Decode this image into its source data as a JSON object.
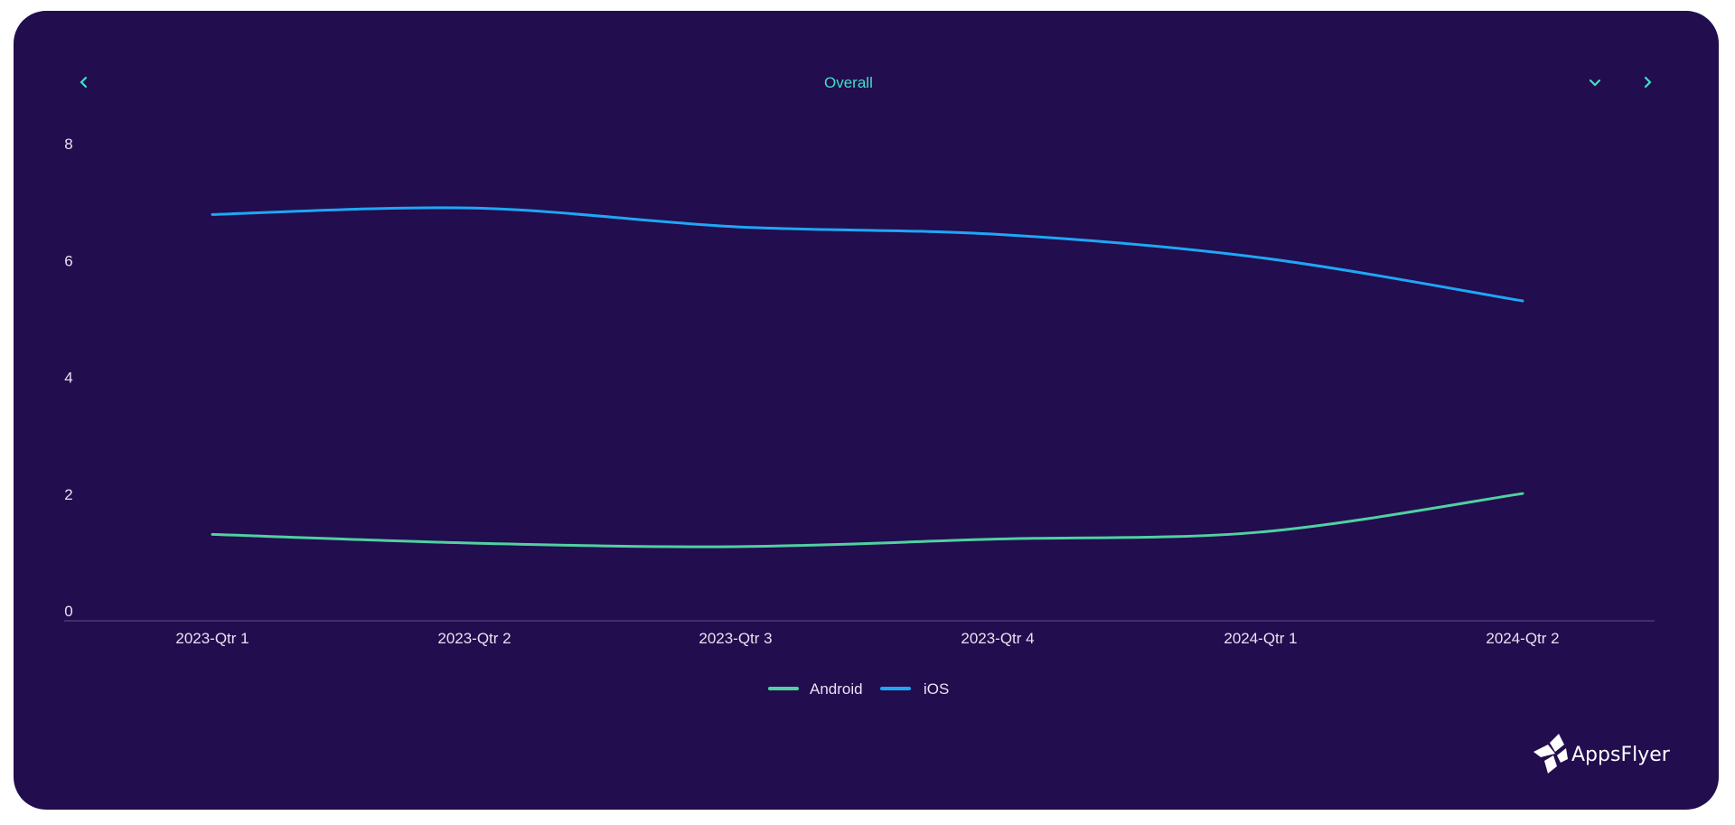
{
  "header": {
    "title": "Overall",
    "prev_icon": "chevron-left-icon",
    "dropdown_icon": "chevron-down-icon",
    "next_icon": "chevron-right-icon"
  },
  "colors": {
    "background": "#220d4e",
    "accent": "#3fe0c5",
    "android": "#4fd1a1",
    "ios": "#1ea7f5"
  },
  "chart_data": {
    "type": "line",
    "categories": [
      "2023-Qtr 1",
      "2023-Qtr 2",
      "2023-Qtr 3",
      "2023-Qtr 4",
      "2024-Qtr 1",
      "2024-Qtr 2"
    ],
    "series": [
      {
        "name": "Android",
        "values": [
          1.48,
          1.33,
          1.27,
          1.4,
          1.52,
          2.18
        ]
      },
      {
        "name": "iOS",
        "values": [
          6.96,
          7.07,
          6.75,
          6.62,
          6.22,
          5.48
        ]
      }
    ],
    "yticks": [
      "0",
      "2",
      "4",
      "6",
      "8"
    ],
    "ylim": [
      0,
      8
    ],
    "grid": false,
    "legend": "bottom-center",
    "smooth": true
  },
  "logo": {
    "text": "AppsFlyer"
  }
}
